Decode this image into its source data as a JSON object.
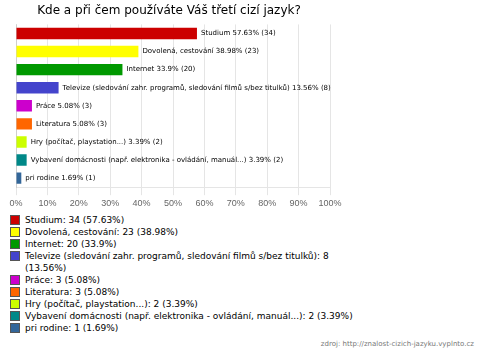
{
  "chart_data": {
    "type": "bar",
    "orientation": "horizontal",
    "title": "Kde a při čem používáte Váš třetí cizí jazyk?",
    "categories": [
      "Studium 57.63% (34)",
      "Dovolená, cestování 38.98% (23)",
      "Internet 33.9% (20)",
      "Televize (sledování zahr. programů, sledování filmů s/bez titulků) 13.56% (8)",
      "Práce 5.08% (3)",
      "Literatura 5.08% (3)",
      "Hry (počítač, playstation...) 3.39% (2)",
      "Vybavení domácnosti (např. elektronika - ovládání, manuál...) 3.39% (2)",
      "pri rodine 1.69% (1)"
    ],
    "values": [
      57.63,
      38.98,
      33.9,
      13.56,
      5.08,
      5.08,
      3.39,
      3.39,
      1.69
    ],
    "colors": [
      "#cc0000",
      "#ffff00",
      "#009900",
      "#4444cc",
      "#cc00cc",
      "#ff6600",
      "#ccff00",
      "#008888",
      "#336699"
    ],
    "xlim": [
      0,
      100
    ],
    "xticks": [
      {
        "value": 0,
        "label": "0%"
      },
      {
        "value": 10,
        "label": "10%"
      },
      {
        "value": 20,
        "label": "20%"
      },
      {
        "value": 30,
        "label": "30%"
      },
      {
        "value": 40,
        "label": "40%"
      },
      {
        "value": 50,
        "label": "50%"
      },
      {
        "value": 60,
        "label": "60%"
      },
      {
        "value": 70,
        "label": "70%"
      },
      {
        "value": 80,
        "label": "80%"
      },
      {
        "value": 90,
        "label": "90%"
      },
      {
        "value": 100,
        "label": "100%"
      }
    ],
    "grid": true,
    "legend_labels": [
      "Studium: 34 (57.63%)",
      "Dovolená, cestování: 23 (38.98%)",
      "Internet: 20 (33.9%)",
      "Televize (sledování zahr. programů, sledování filmů s/bez titulků): 8\n(13.56%)",
      "Práce: 3 (5.08%)",
      "Literatura: 3 (5.08%)",
      "Hry (počítač, playstation...): 2 (3.39%)",
      "Vybavení domácnosti (např. elektronika - ovládání, manuál...): 2 (3.39%)",
      "pri rodine: 1 (1.69%)"
    ],
    "source": "zdroj: http://znalost-cizich-jazyku.vyplnto.cz"
  }
}
